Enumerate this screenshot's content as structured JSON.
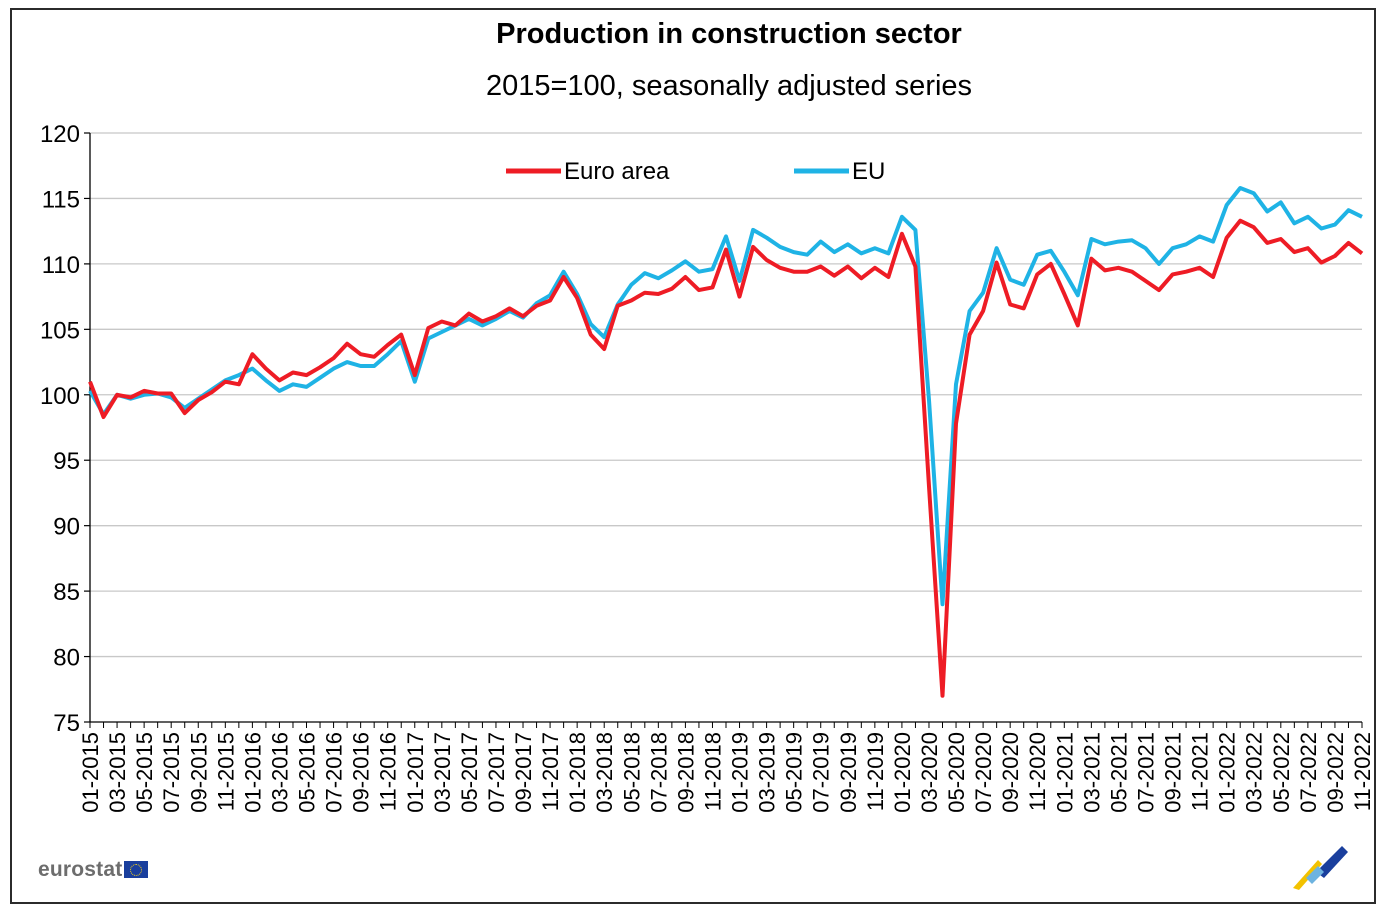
{
  "chart_data": {
    "type": "line",
    "title": "Production in construction sector",
    "subtitle": "2015=100, seasonally adjusted series",
    "xlabel": "",
    "ylabel": "",
    "ylim": [
      75,
      120
    ],
    "yticks": [
      75,
      80,
      85,
      90,
      95,
      100,
      105,
      110,
      115,
      120
    ],
    "grid": true,
    "legend": "top-center",
    "x": [
      "01-2015",
      "02-2015",
      "03-2015",
      "04-2015",
      "05-2015",
      "06-2015",
      "07-2015",
      "08-2015",
      "09-2015",
      "10-2015",
      "11-2015",
      "12-2015",
      "01-2016",
      "02-2016",
      "03-2016",
      "04-2016",
      "05-2016",
      "06-2016",
      "07-2016",
      "08-2016",
      "09-2016",
      "10-2016",
      "11-2016",
      "12-2016",
      "01-2017",
      "02-2017",
      "03-2017",
      "04-2017",
      "05-2017",
      "06-2017",
      "07-2017",
      "08-2017",
      "09-2017",
      "10-2017",
      "11-2017",
      "12-2017",
      "01-2018",
      "02-2018",
      "03-2018",
      "04-2018",
      "05-2018",
      "06-2018",
      "07-2018",
      "08-2018",
      "09-2018",
      "10-2018",
      "11-2018",
      "12-2018",
      "01-2019",
      "02-2019",
      "03-2019",
      "04-2019",
      "05-2019",
      "06-2019",
      "07-2019",
      "08-2019",
      "09-2019",
      "10-2019",
      "11-2019",
      "12-2019",
      "01-2020",
      "02-2020",
      "03-2020",
      "04-2020",
      "05-2020",
      "06-2020",
      "07-2020",
      "08-2020",
      "09-2020",
      "10-2020",
      "11-2020",
      "12-2020",
      "01-2021",
      "02-2021",
      "03-2021",
      "04-2021",
      "05-2021",
      "06-2021",
      "07-2021",
      "08-2021",
      "09-2021",
      "10-2021",
      "11-2021",
      "12-2021",
      "01-2022",
      "02-2022",
      "03-2022",
      "04-2022",
      "05-2022",
      "06-2022",
      "07-2022",
      "08-2022",
      "09-2022",
      "10-2022",
      "11-2022"
    ],
    "xticklabels": [
      "01-2015",
      "03-2015",
      "05-2015",
      "07-2015",
      "09-2015",
      "11-2015",
      "01-2016",
      "03-2016",
      "05-2016",
      "07-2016",
      "09-2016",
      "11-2016",
      "01-2017",
      "03-2017",
      "05-2017",
      "07-2017",
      "09-2017",
      "11-2017",
      "01-2018",
      "03-2018",
      "05-2018",
      "07-2018",
      "09-2018",
      "11-2018",
      "01-2019",
      "03-2019",
      "05-2019",
      "07-2019",
      "09-2019",
      "11-2019",
      "01-2020",
      "03-2020",
      "05-2020",
      "07-2020",
      "09-2020",
      "11-2020",
      "01-2021",
      "03-2021",
      "05-2021",
      "07-2021",
      "09-2021",
      "11-2021",
      "01-2022",
      "03-2022",
      "05-2022",
      "07-2022",
      "09-2022",
      "11-2022"
    ],
    "series": [
      {
        "name": "Euro area",
        "color": "#ee1c25",
        "values": [
          101.0,
          98.3,
          100.0,
          99.8,
          100.3,
          100.1,
          100.1,
          98.6,
          99.6,
          100.2,
          101.0,
          100.8,
          103.1,
          102.0,
          101.1,
          101.7,
          101.5,
          102.1,
          102.8,
          103.9,
          103.1,
          102.9,
          103.8,
          104.6,
          101.5,
          105.1,
          105.6,
          105.3,
          106.2,
          105.6,
          106.0,
          106.6,
          106.0,
          106.8,
          107.2,
          109.0,
          107.4,
          104.6,
          103.5,
          106.8,
          107.2,
          107.8,
          107.7,
          108.1,
          109.0,
          108.0,
          108.2,
          111.1,
          107.5,
          111.3,
          110.3,
          109.7,
          109.4,
          109.4,
          109.8,
          109.1,
          109.8,
          108.9,
          109.7,
          109.0,
          112.3,
          109.8,
          93.0,
          77.0,
          97.8,
          104.6,
          106.4,
          110.1,
          106.9,
          106.6,
          109.2,
          110.0,
          107.7,
          105.3,
          110.4,
          109.5,
          109.7,
          109.4,
          108.7,
          108.0,
          109.2,
          109.4,
          109.7,
          109.0,
          112.0,
          113.3,
          112.8,
          111.6,
          111.9,
          110.9,
          111.2,
          110.1,
          110.6,
          111.6,
          110.8
        ]
      },
      {
        "name": "EU",
        "color": "#1fb3e5",
        "values": [
          100.3,
          98.5,
          100.0,
          99.7,
          100.0,
          100.1,
          99.8,
          99.0,
          99.7,
          100.4,
          101.1,
          101.5,
          102.0,
          101.1,
          100.3,
          100.8,
          100.6,
          101.3,
          102.0,
          102.5,
          102.2,
          102.2,
          103.1,
          104.1,
          101.0,
          104.3,
          104.8,
          105.3,
          105.8,
          105.3,
          105.8,
          106.4,
          105.9,
          107.0,
          107.6,
          109.4,
          107.7,
          105.4,
          104.4,
          106.9,
          108.4,
          109.3,
          108.9,
          109.5,
          110.2,
          109.4,
          109.6,
          112.1,
          108.7,
          112.6,
          112.0,
          111.3,
          110.9,
          110.7,
          111.7,
          110.9,
          111.5,
          110.8,
          111.2,
          110.8,
          113.6,
          112.6,
          99.6,
          84.0,
          100.8,
          106.4,
          107.8,
          111.2,
          108.8,
          108.4,
          110.7,
          111.0,
          109.4,
          107.6,
          111.9,
          111.5,
          111.7,
          111.8,
          111.2,
          110.0,
          111.2,
          111.5,
          112.1,
          111.7,
          114.5,
          115.8,
          115.4,
          114.0,
          114.7,
          113.1,
          113.6,
          112.7,
          113.0,
          114.1,
          113.6
        ]
      }
    ]
  },
  "branding": {
    "logo_text": "eurostat"
  }
}
